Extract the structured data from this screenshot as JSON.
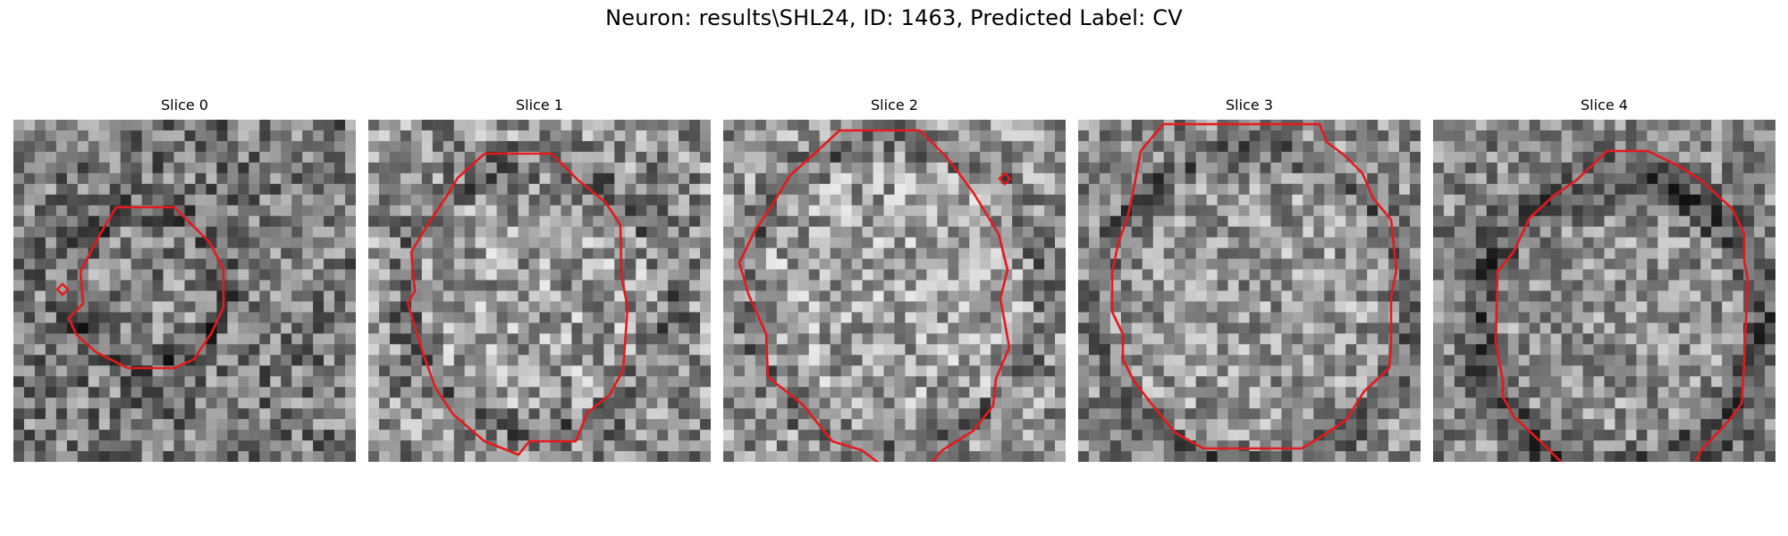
{
  "figure": {
    "title": "Neuron: results\\SHL24, ID: 1463, Predicted Label: CV"
  },
  "colors": {
    "contour": "#e41a1c",
    "background": "#ffffff"
  },
  "panels": [
    {
      "title": "Slice 0"
    },
    {
      "title": "Slice 1"
    },
    {
      "title": "Slice 2"
    },
    {
      "title": "Slice 3"
    },
    {
      "title": "Slice 4"
    }
  ]
}
